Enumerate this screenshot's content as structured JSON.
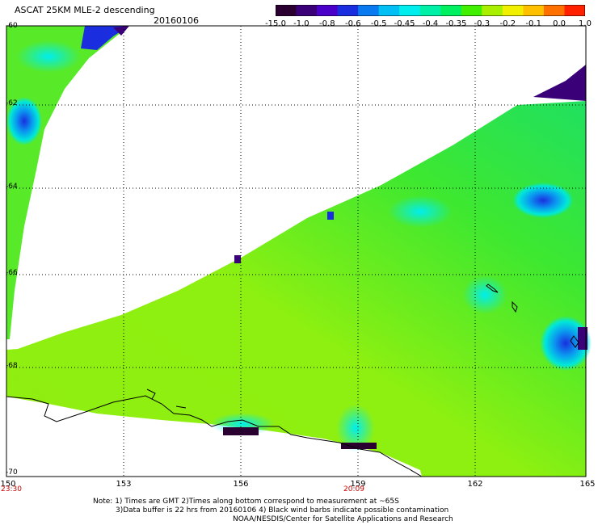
{
  "header": {
    "title": "ASCAT 25KM MLE-2 descending",
    "date": "20160106"
  },
  "colorbar": {
    "labels": [
      "-15.0",
      "-1.0",
      "-0.8",
      "-0.6",
      "-0.5",
      "-0.45",
      "-0.4",
      "-0.35",
      "-0.3",
      "-0.2",
      "-0.1",
      "0.0",
      "1.0"
    ],
    "colors": [
      "#2a0030",
      "#3a0078",
      "#4a00c8",
      "#1a2ee0",
      "#0a7af0",
      "#00bff5",
      "#00eeee",
      "#00f0a8",
      "#00f060",
      "#40f000",
      "#a8f000",
      "#f0f000",
      "#ffc000",
      "#ff7000",
      "#ff2000"
    ]
  },
  "axes": {
    "lat_labels": [
      "-60",
      "-62",
      "-64",
      "-66",
      "-68",
      "-70"
    ],
    "lon_labels": [
      "150",
      "153",
      "156",
      "159",
      "162",
      "165"
    ],
    "times": [
      "23:30",
      "20:09"
    ]
  },
  "footer": {
    "line1": "Note: 1) Times are GMT 2)Times along bottom correspond to measurement at ~65S",
    "line2": "3)Data buffer is 22 hrs from 20160106 4) Black wind barbs indicate possible contamination",
    "line3": "NOAA/NESDIS/Center for Satellite Applications and Research"
  }
}
